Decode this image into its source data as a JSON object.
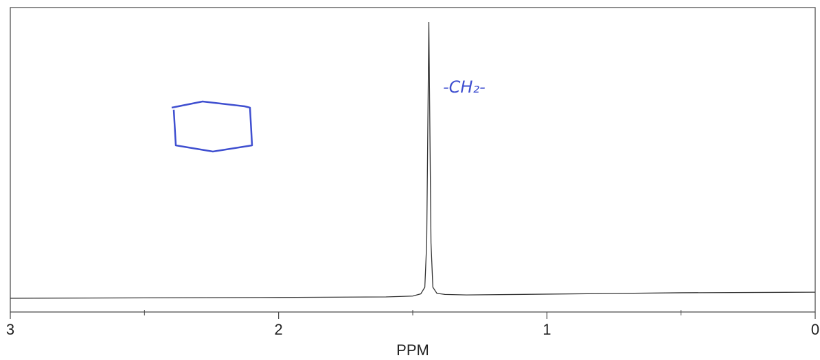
{
  "chart_data": {
    "type": "line",
    "x_label": "PPM",
    "annotation": "-CH₂-",
    "xlim": [
      3,
      0
    ],
    "xticks": [
      3,
      2,
      1,
      0
    ],
    "xminor": [
      2.5,
      1.5,
      0.5
    ],
    "ylim": [
      0,
      100
    ],
    "series": [
      {
        "color": "#333333",
        "x": [
          3,
          2,
          1.6,
          1.5,
          1.47,
          1.455,
          1.448,
          1.444,
          1.44,
          1.436,
          1.432,
          1.425,
          1.41,
          1.38,
          1.3,
          1,
          0.5,
          0
        ],
        "values": [
          0,
          0.3,
          0.5,
          0.8,
          1.6,
          4,
          20,
          60,
          100,
          60,
          20,
          4,
          1.8,
          1.4,
          1.2,
          1.5,
          2,
          2.2
        ]
      }
    ]
  }
}
